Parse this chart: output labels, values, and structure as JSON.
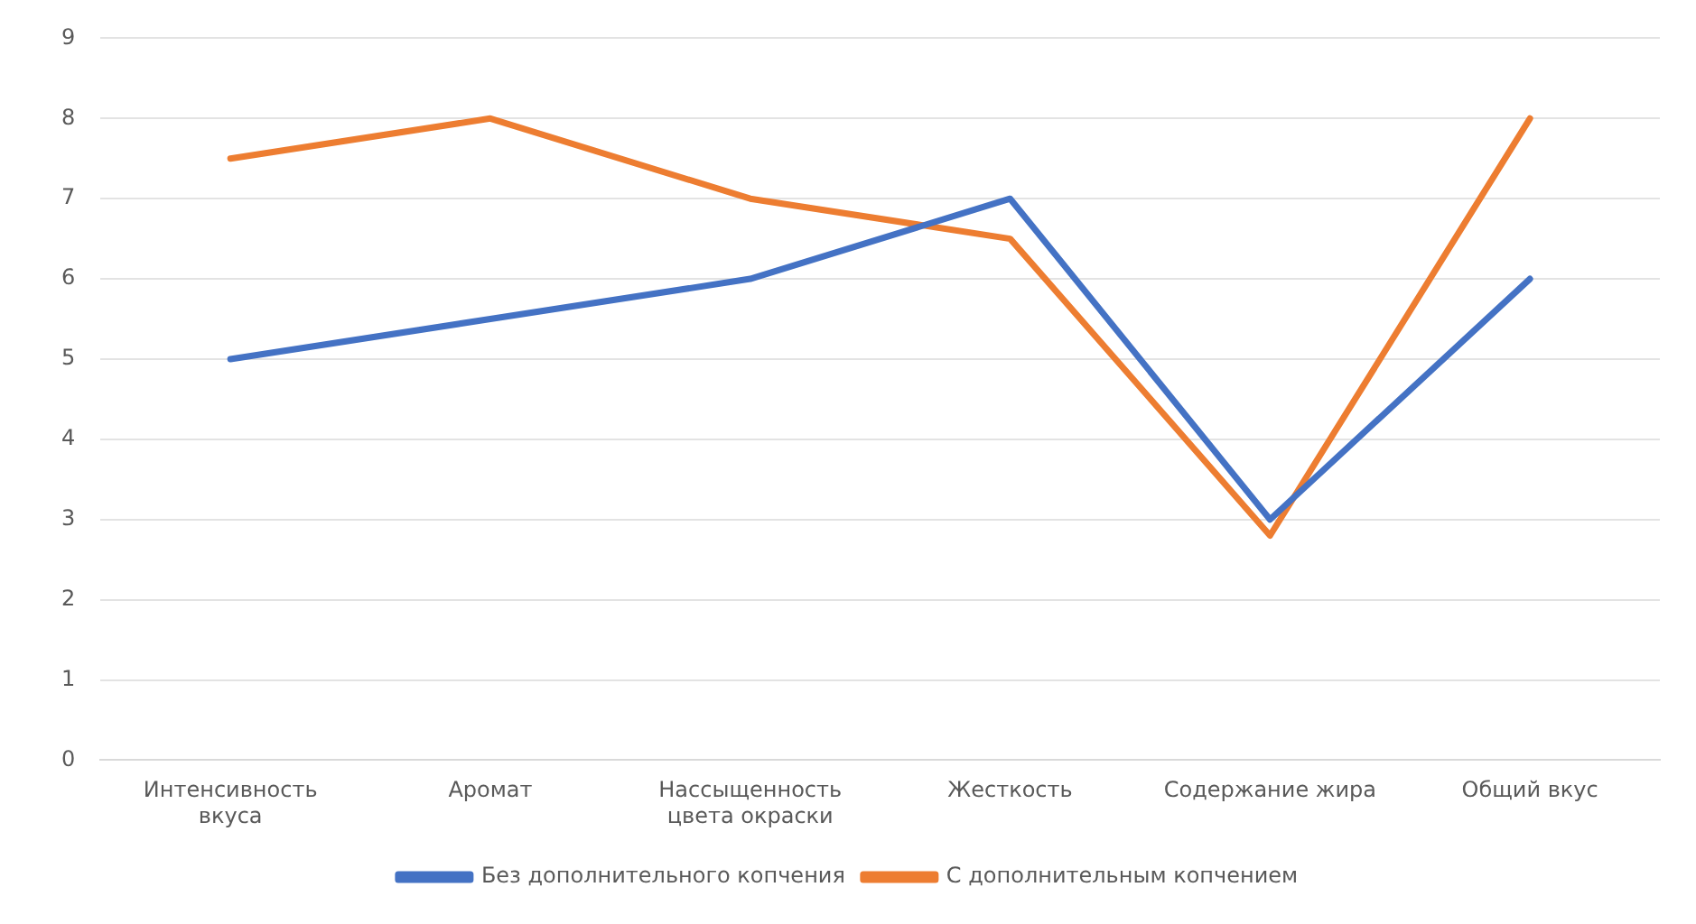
{
  "chart_data": {
    "type": "line",
    "categories": [
      "Интенсивность вкуса",
      "Аромат",
      "Нассыщенность цвета окраски",
      "Жесткость",
      "Содержание жира",
      "Общий вкус"
    ],
    "series": [
      {
        "name": "Без дополнительного копчения",
        "color": "#4472c4",
        "values": [
          5,
          5.5,
          6,
          7,
          3,
          6
        ]
      },
      {
        "name": "С дополнительным копчением",
        "color": "#ed7d31",
        "values": [
          7.5,
          8,
          7,
          6.5,
          2.8,
          8
        ]
      }
    ],
    "ylim": [
      0,
      9
    ],
    "yticks": [
      0,
      1,
      2,
      3,
      4,
      5,
      6,
      7,
      8,
      9
    ],
    "grid": "y",
    "legend": "bottom",
    "marker": "none",
    "line_style": "solid"
  }
}
